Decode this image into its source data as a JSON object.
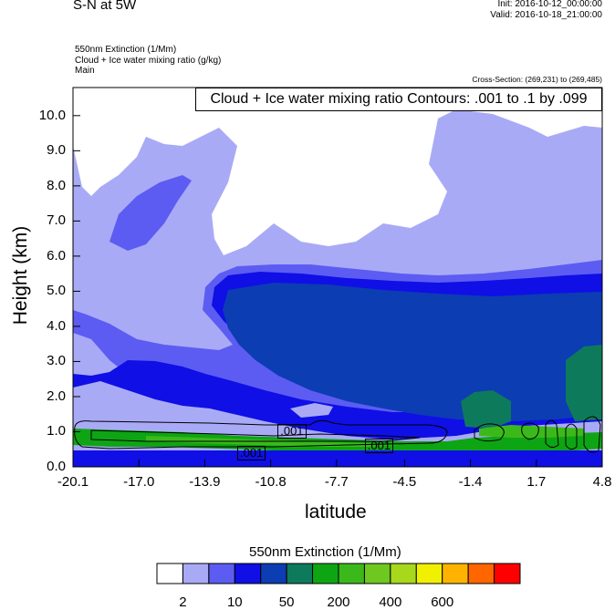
{
  "header": {
    "title": "S-N at 5W",
    "init": "Init: 2016-10-12_00:00:00",
    "valid": "Valid: 2016-10-18_21:00:00",
    "field_line1": "550nm Extinction   (1/Mm)",
    "field_line2": "Cloud + Ice water mixing ratio   (g/kg)",
    "field_line3": "Main",
    "cross_section": "Cross-Section: (269,231) to (269,485)"
  },
  "chart_data": {
    "type": "heatmap",
    "title": "S-N at 5W",
    "xlabel": "latitude",
    "ylabel": "Height (km)",
    "xlim": [
      -20.1,
      4.8
    ],
    "ylim": [
      0.0,
      10.8
    ],
    "xticks": [
      "-20.1",
      "-17.0",
      "-13.9",
      "-10.8",
      "-7.7",
      "-4.5",
      "-1.4",
      "1.7",
      "4.8"
    ],
    "yticks": [
      "0.0",
      "1.0",
      "2.0",
      "3.0",
      "4.0",
      "5.0",
      "6.0",
      "7.0",
      "8.0",
      "9.0",
      "10.0"
    ],
    "legend": "Cloud + Ice water mixing ratio Contours: .001 to .1 by .099",
    "contour_labels": [
      {
        "text": ".001",
        "lat": -11.6,
        "height": 0.4
      },
      {
        "text": ".001",
        "lat": -9.7,
        "height": 1.0
      },
      {
        "text": ".001",
        "lat": -5.6,
        "height": 0.6
      }
    ],
    "colorbar": {
      "title": "550nm Extinction  (1/Mm)",
      "colors": [
        "#ffffff",
        "#a9aaf6",
        "#5c5cf2",
        "#0f0fe6",
        "#0c3db3",
        "#0e7a5c",
        "#0ea514",
        "#3cb91a",
        "#6ec81f",
        "#a8d81c",
        "#f0f000",
        "#ffb300",
        "#ff6600",
        "#ff0000"
      ],
      "tick_labels": [
        "2",
        "10",
        "50",
        "200",
        "400",
        "600"
      ]
    }
  }
}
